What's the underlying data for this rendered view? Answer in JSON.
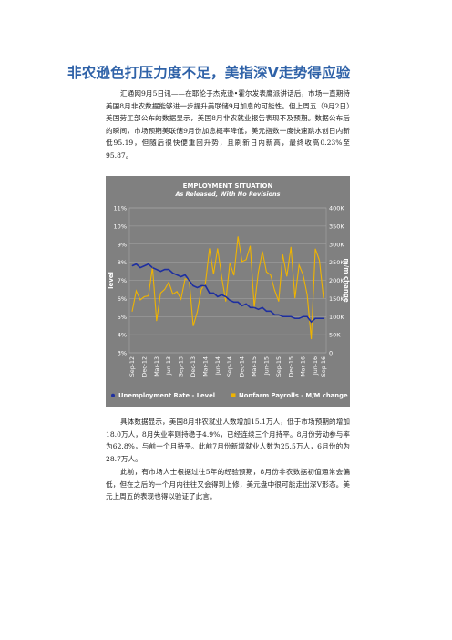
{
  "article": {
    "title": "非农逊色打压力度不足，美指深V走势得应验",
    "paragraphs": [
      "汇通网9月5日讯——在耶伦于杰克逊•霍尔发表鹰派讲话后，市场一直期待美国8月非农数据能够进一步提升美联储9月加息的可能性。但上周五（9月2日）美国劳工部公布的数据显示，美国8月非农就业报告表现不及预期。数据公布后的瞬间，市场预期美联储9月份加息概率降低，美元指数一度快速跳水创日内新低95.19，但随后很快便重回升势，且刷新日内新高，最终收高0.23%至95.87。",
      "具体数据显示，美国8月非农就业人数增加15.1万人，低于市场预期的增加18.0万人，8月失业率则持稳于4.9%，已经连续三个月持平。8月份劳动参与率为62.8%，与前一个月持平。此前7月份新增就业人数为25.5万人，6月份的为28.7万人。",
      "此前，有市场人士根据过往5年的经验预期，8月份非农数据初值通常会偏低，但在之后的一个月内往往又会得到上修，美元盘中很可能走出深V形态。美元上周五的表现也得以验证了此言。"
    ]
  },
  "colors": {
    "chart_bg": "#808080",
    "unemployment": "#1e2fa0",
    "payrolls": "#f0b400",
    "grid": "#a6a6a6",
    "tick_text": "#ffffff"
  },
  "chart_data": {
    "type": "line",
    "title": "EMPLOYMENT SITUATION",
    "subtitle": "As Released, With No Revisions",
    "ylabel": "level",
    "ylabel_right": "m/m change",
    "ylim": [
      3,
      11
    ],
    "ylim_right": [
      0,
      400000
    ],
    "yticks_left": [
      "3%",
      "4%",
      "5%",
      "6%",
      "7%",
      "8%",
      "9%",
      "10%",
      "11%"
    ],
    "yticks_right": [
      "0",
      "50K",
      "100K",
      "150K",
      "200K",
      "250K",
      "300K",
      "350K",
      "400K"
    ],
    "x_tick_labels": [
      "Sep-12",
      "Dec-12",
      "Mar-13",
      "Jun-13",
      "Sep-13",
      "Dec-13",
      "Mar-14",
      "Jun-14",
      "Sep-14",
      "Dec-14",
      "Mar-15",
      "Jun-15",
      "Sep-15",
      "Dec-15",
      "Mar-16",
      "Jun-16",
      "Sep-16"
    ],
    "x": [
      "Sep-12",
      "Oct-12",
      "Nov-12",
      "Dec-12",
      "Jan-13",
      "Feb-13",
      "Mar-13",
      "Apr-13",
      "May-13",
      "Jun-13",
      "Jul-13",
      "Aug-13",
      "Sep-13",
      "Oct-13",
      "Nov-13",
      "Dec-13",
      "Jan-14",
      "Feb-14",
      "Mar-14",
      "Apr-14",
      "May-14",
      "Jun-14",
      "Jul-14",
      "Aug-14",
      "Sep-14",
      "Oct-14",
      "Nov-14",
      "Dec-14",
      "Jan-15",
      "Feb-15",
      "Mar-15",
      "Apr-15",
      "May-15",
      "Jun-15",
      "Jul-15",
      "Aug-15",
      "Sep-15",
      "Oct-15",
      "Nov-15",
      "Dec-15",
      "Jan-16",
      "Feb-16",
      "Mar-16",
      "Apr-16",
      "May-16",
      "Jun-16",
      "Jul-16",
      "Aug-16"
    ],
    "series": [
      {
        "name": "Unemployment Rate - Level",
        "axis": "left",
        "values": [
          7.8,
          7.9,
          7.7,
          7.8,
          7.9,
          7.7,
          7.6,
          7.5,
          7.6,
          7.6,
          7.4,
          7.3,
          7.2,
          7.3,
          7.0,
          6.7,
          6.6,
          6.7,
          6.7,
          6.3,
          6.3,
          6.1,
          6.2,
          6.1,
          5.9,
          5.8,
          5.8,
          5.6,
          5.7,
          5.5,
          5.5,
          5.4,
          5.5,
          5.3,
          5.3,
          5.1,
          5.1,
          5.0,
          5.0,
          5.0,
          4.9,
          4.9,
          5.0,
          5.0,
          4.7,
          4.9,
          4.9,
          4.9
        ]
      },
      {
        "name": "Nonfarm Payrolls - M/M change",
        "axis": "right",
        "values": [
          114000,
          171000,
          146000,
          155000,
          157000,
          236000,
          88000,
          165000,
          175000,
          195000,
          162000,
          169000,
          148000,
          204000,
          203000,
          74000,
          113000,
          175000,
          192000,
          288000,
          217000,
          288000,
          209000,
          142000,
          248000,
          214000,
          321000,
          252000,
          257000,
          295000,
          126000,
          223000,
          280000,
          223000,
          215000,
          173000,
          142000,
          271000,
          211000,
          292000,
          151000,
          242000,
          215000,
          160000,
          38000,
          287000,
          255000,
          151000
        ]
      }
    ],
    "legend_position": "bottom",
    "grid": true
  }
}
